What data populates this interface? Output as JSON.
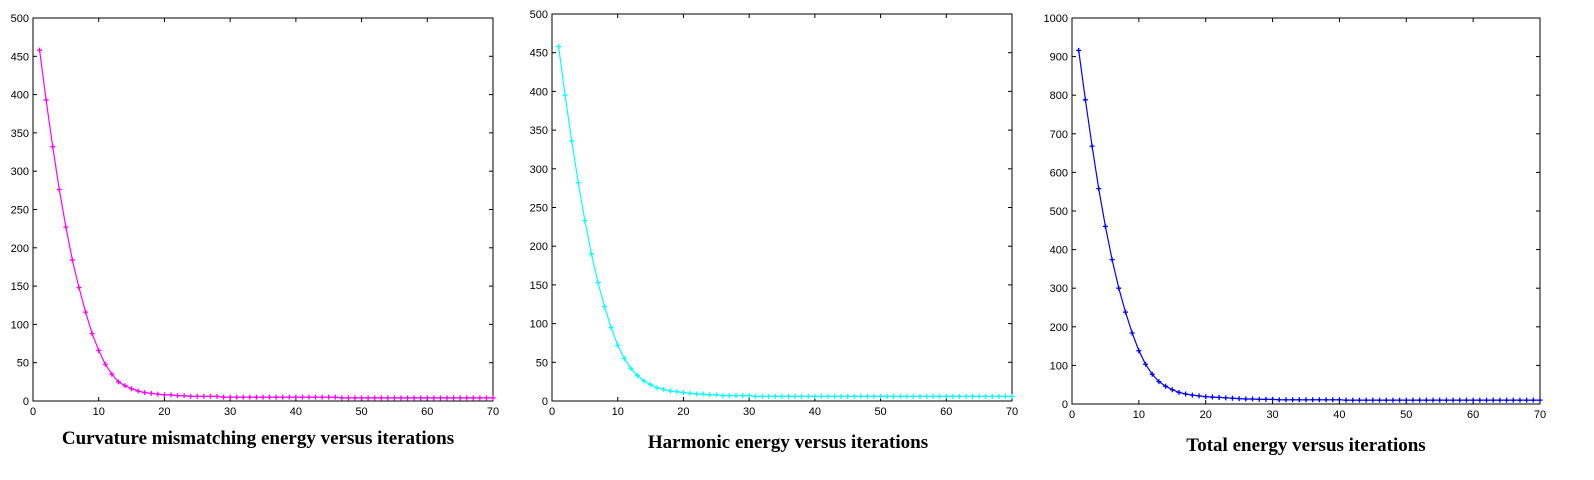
{
  "chart_data": [
    {
      "type": "line",
      "caption": "Curvature mismatching energy versus iterations",
      "color": "#ff00ff",
      "xlim": [
        0,
        70
      ],
      "ylim": [
        0,
        500
      ],
      "xticks": [
        0,
        10,
        20,
        30,
        40,
        50,
        60,
        70
      ],
      "yticks": [
        0,
        50,
        100,
        150,
        200,
        250,
        300,
        350,
        400,
        450,
        500
      ],
      "grid": false,
      "marker": "dot",
      "x": [
        1,
        2,
        3,
        4,
        5,
        6,
        7,
        8,
        9,
        10,
        11,
        12,
        13,
        14,
        15,
        16,
        17,
        18,
        19,
        20,
        21,
        22,
        23,
        24,
        25,
        26,
        27,
        28,
        29,
        30,
        31,
        32,
        33,
        34,
        35,
        36,
        37,
        38,
        39,
        40,
        41,
        42,
        43,
        44,
        45,
        46,
        47,
        48,
        49,
        50,
        51,
        52,
        53,
        54,
        55,
        56,
        57,
        58,
        59,
        60,
        61,
        62,
        63,
        64,
        65,
        66,
        67,
        68,
        69,
        70
      ],
      "y": [
        458,
        393,
        332,
        276,
        227,
        184,
        148,
        116,
        88,
        66,
        48,
        35,
        25,
        20,
        16,
        13,
        11,
        10,
        9,
        8,
        8,
        7,
        7,
        6,
        6,
        6,
        6,
        6,
        5,
        5,
        5,
        5,
        5,
        5,
        5,
        5,
        5,
        5,
        5,
        5,
        5,
        5,
        5,
        5,
        5,
        5,
        4,
        4,
        4,
        4,
        4,
        4,
        4,
        4,
        4,
        4,
        4,
        4,
        4,
        4,
        4,
        4,
        4,
        4,
        4,
        4,
        4,
        4,
        4,
        4
      ]
    },
    {
      "type": "line",
      "caption": "Harmonic energy versus iterations",
      "color": "#00ffff",
      "xlim": [
        0,
        70
      ],
      "ylim": [
        0,
        500
      ],
      "xticks": [
        0,
        10,
        20,
        30,
        40,
        50,
        60,
        70
      ],
      "yticks": [
        0,
        50,
        100,
        150,
        200,
        250,
        300,
        350,
        400,
        450,
        500
      ],
      "grid": false,
      "marker": "dot",
      "x": [
        1,
        2,
        3,
        4,
        5,
        6,
        7,
        8,
        9,
        10,
        11,
        12,
        13,
        14,
        15,
        16,
        17,
        18,
        19,
        20,
        21,
        22,
        23,
        24,
        25,
        26,
        27,
        28,
        29,
        30,
        31,
        32,
        33,
        34,
        35,
        36,
        37,
        38,
        39,
        40,
        41,
        42,
        43,
        44,
        45,
        46,
        47,
        48,
        49,
        50,
        51,
        52,
        53,
        54,
        55,
        56,
        57,
        58,
        59,
        60,
        61,
        62,
        63,
        64,
        65,
        66,
        67,
        68,
        69,
        70
      ],
      "y": [
        458,
        395,
        336,
        282,
        233,
        190,
        153,
        122,
        95,
        72,
        55,
        42,
        33,
        26,
        21,
        17,
        15,
        13,
        12,
        11,
        10,
        9,
        9,
        8,
        8,
        7,
        7,
        7,
        7,
        7,
        6,
        6,
        6,
        6,
        6,
        6,
        6,
        6,
        6,
        6,
        6,
        6,
        6,
        6,
        6,
        6,
        6,
        6,
        6,
        6,
        6,
        6,
        6,
        6,
        6,
        6,
        6,
        6,
        6,
        6,
        6,
        6,
        6,
        6,
        6,
        6,
        6,
        6,
        6,
        6
      ]
    },
    {
      "type": "line",
      "caption": "Total energy versus iterations",
      "color": "#0000ff",
      "xlim": [
        0,
        70
      ],
      "ylim": [
        0,
        1000
      ],
      "xticks": [
        0,
        10,
        20,
        30,
        40,
        50,
        60,
        70
      ],
      "yticks": [
        0,
        100,
        200,
        300,
        400,
        500,
        600,
        700,
        800,
        900,
        1000
      ],
      "grid": false,
      "marker": "dot",
      "x": [
        1,
        2,
        3,
        4,
        5,
        6,
        7,
        8,
        9,
        10,
        11,
        12,
        13,
        14,
        15,
        16,
        17,
        18,
        19,
        20,
        21,
        22,
        23,
        24,
        25,
        26,
        27,
        28,
        29,
        30,
        31,
        32,
        33,
        34,
        35,
        36,
        37,
        38,
        39,
        40,
        41,
        42,
        43,
        44,
        45,
        46,
        47,
        48,
        49,
        50,
        51,
        52,
        53,
        54,
        55,
        56,
        57,
        58,
        59,
        60,
        61,
        62,
        63,
        64,
        65,
        66,
        67,
        68,
        69,
        70
      ],
      "y": [
        916,
        788,
        668,
        558,
        460,
        374,
        300,
        238,
        184,
        138,
        103,
        77,
        58,
        46,
        37,
        30,
        26,
        23,
        21,
        19,
        18,
        17,
        16,
        15,
        14,
        13,
        13,
        12,
        12,
        12,
        11,
        11,
        11,
        11,
        11,
        11,
        11,
        11,
        11,
        11,
        10,
        10,
        10,
        10,
        10,
        10,
        10,
        10,
        10,
        10,
        10,
        10,
        10,
        10,
        10,
        10,
        10,
        10,
        10,
        10,
        10,
        10,
        10,
        10,
        10,
        10,
        10,
        10,
        10,
        10
      ]
    }
  ]
}
